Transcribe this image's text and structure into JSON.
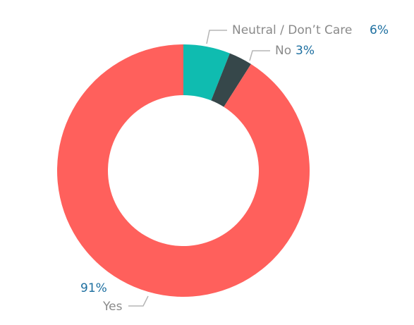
{
  "chart_data": {
    "type": "pie",
    "donut": true,
    "slices": [
      {
        "label": "Neutral / Don’t Care",
        "value": 6,
        "value_label": "6%",
        "color": "#0fbcb0"
      },
      {
        "label": "No",
        "value": 3,
        "value_label": "3%",
        "color": "#36474a"
      },
      {
        "label": "Yes",
        "value": 91,
        "value_label": "91%",
        "color": "#ff605c"
      }
    ],
    "percent_label_color": "#1d6fa0",
    "category_label_color": "#8a8a8a"
  }
}
